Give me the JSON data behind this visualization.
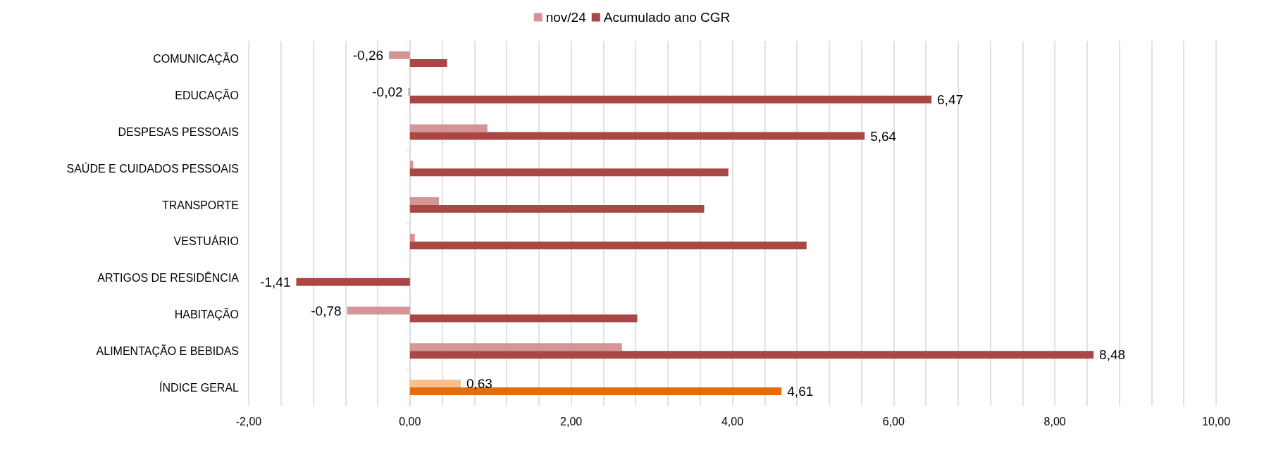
{
  "chart_data": {
    "type": "bar",
    "orientation": "horizontal",
    "categories": [
      "COMUNICAÇÃO",
      "EDUCAÇÃO",
      "DESPESAS PESSOAIS",
      "SAÚDE E CUIDADOS PESSOAIS",
      "TRANSPORTE",
      "VESTUÁRIO",
      "ARTIGOS DE RESIDÊNCIA",
      "HABITAÇÃO",
      "ALIMENTAÇÃO E BEBIDAS",
      "ÍNDICE GERAL"
    ],
    "series": [
      {
        "name": "nov/24",
        "color": "#d39694",
        "colors": [
          "#d39694",
          "#d39694",
          "#d39694",
          "#d39694",
          "#d39694",
          "#d39694",
          "#d39694",
          "#d39694",
          "#d39694",
          "#f9c08f"
        ],
        "values": [
          -0.26,
          -0.02,
          0.96,
          0.04,
          0.36,
          0.06,
          0,
          -0.78,
          2.63,
          0.63
        ],
        "value_labels": [
          "-0,26",
          "-0,02",
          null,
          null,
          null,
          null,
          null,
          "-0,78",
          null,
          "0,63"
        ]
      },
      {
        "name": "Acumulado ano CGR",
        "color": "#a94745",
        "colors": [
          "#a94745",
          "#a94745",
          "#a94745",
          "#a94745",
          "#a94745",
          "#a94745",
          "#a94745",
          "#a94745",
          "#a94745",
          "#e46c0a"
        ],
        "values": [
          0.46,
          6.47,
          5.64,
          3.95,
          3.65,
          4.92,
          -1.41,
          2.82,
          8.48,
          4.61
        ],
        "value_labels": [
          null,
          "6,47",
          "5,64",
          null,
          null,
          null,
          "-1,41",
          null,
          "8,48",
          "4,61"
        ]
      }
    ],
    "xlim": [
      -2,
      10
    ],
    "xticks": [
      {
        "value": -2,
        "label": "-2,00"
      },
      {
        "value": -1.6,
        "label": null
      },
      {
        "value": -1.2,
        "label": null
      },
      {
        "value": -0.8,
        "label": null
      },
      {
        "value": -0.4,
        "label": null
      },
      {
        "value": 0,
        "label": "0,00"
      },
      {
        "value": 0.4,
        "label": null
      },
      {
        "value": 0.8,
        "label": null
      },
      {
        "value": 1.2,
        "label": null
      },
      {
        "value": 1.6,
        "label": null
      },
      {
        "value": 2,
        "label": "2,00"
      },
      {
        "value": 2.4,
        "label": null
      },
      {
        "value": 2.8,
        "label": null
      },
      {
        "value": 3.2,
        "label": null
      },
      {
        "value": 3.6,
        "label": null
      },
      {
        "value": 4,
        "label": "4,00"
      },
      {
        "value": 4.4,
        "label": null
      },
      {
        "value": 4.8,
        "label": null
      },
      {
        "value": 5.2,
        "label": null
      },
      {
        "value": 5.6,
        "label": null
      },
      {
        "value": 6,
        "label": "6,00"
      },
      {
        "value": 6.4,
        "label": null
      },
      {
        "value": 6.8,
        "label": null
      },
      {
        "value": 7.2,
        "label": null
      },
      {
        "value": 7.6,
        "label": null
      },
      {
        "value": 8,
        "label": "8,00"
      },
      {
        "value": 8.4,
        "label": null
      },
      {
        "value": 8.8,
        "label": null
      },
      {
        "value": 9.2,
        "label": null
      },
      {
        "value": 9.6,
        "label": null
      },
      {
        "value": 10,
        "label": "10,00"
      }
    ],
    "grid": "x",
    "legend": "top"
  }
}
